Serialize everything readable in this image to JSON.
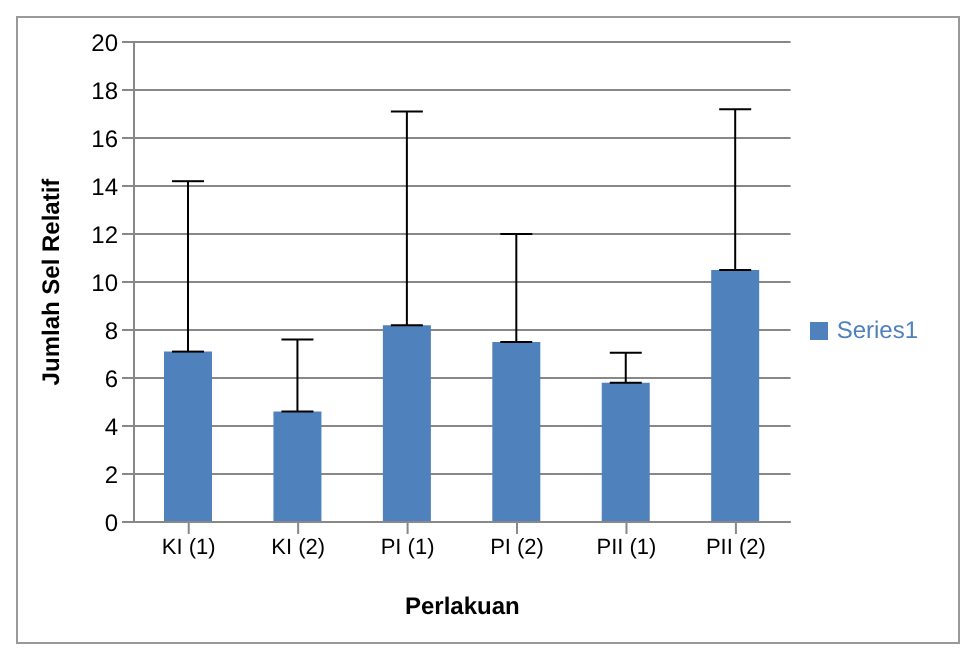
{
  "chart_data": {
    "type": "bar",
    "categories": [
      "KI (1)",
      "KI (2)",
      "PI (1)",
      "PI (2)",
      "PII (1)",
      "PII (2)"
    ],
    "series": [
      {
        "name": "Series1",
        "color": "#4f81bd",
        "values": [
          7.1,
          4.6,
          8.2,
          7.5,
          5.8,
          10.5
        ],
        "errors": [
          [
            7.1,
            14.2
          ],
          [
            4.6,
            7.6
          ],
          [
            8.2,
            17.1
          ],
          [
            7.5,
            12.0
          ],
          [
            5.8,
            7.05
          ],
          [
            10.5,
            17.2
          ]
        ]
      }
    ],
    "xlabel": "Perlakuan",
    "ylabel": "Jumlah Sel Relatif",
    "ylim": [
      0,
      20
    ],
    "yticks": [
      0,
      2,
      4,
      6,
      8,
      10,
      12,
      14,
      16,
      18,
      20
    ],
    "grid": "y",
    "legend": "right"
  }
}
